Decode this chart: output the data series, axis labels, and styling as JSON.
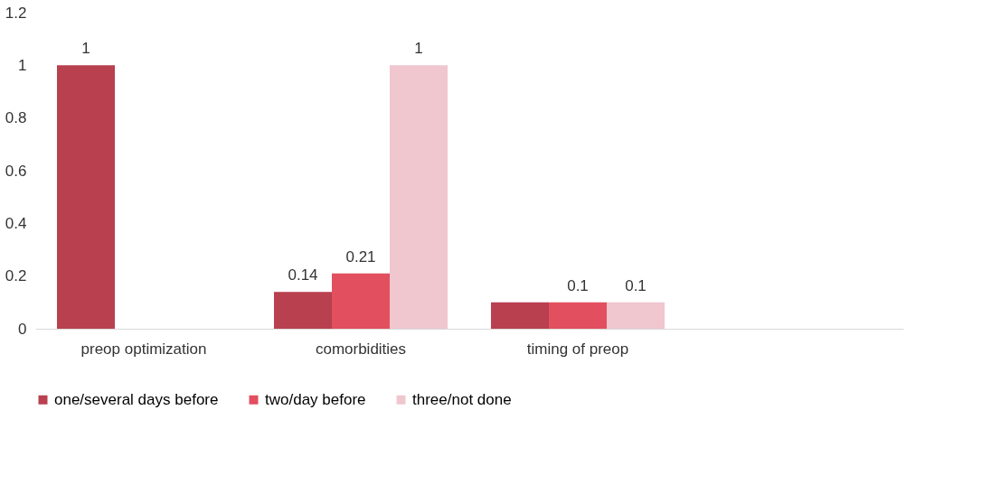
{
  "chart_data": {
    "type": "bar",
    "categories": [
      "preop optimization",
      "comorbidities",
      "timing of preop",
      null
    ],
    "series": [
      {
        "name": "one/several days before",
        "color": "#b8404f",
        "values": [
          1,
          0.14,
          0.1,
          null
        ],
        "value_labels": [
          "1",
          "0.14",
          null,
          null
        ]
      },
      {
        "name": "two/day before",
        "color": "#e24f5e",
        "values": [
          null,
          0.21,
          0.1,
          null
        ],
        "value_labels": [
          null,
          "0.21",
          "0.1",
          null
        ]
      },
      {
        "name": "three/not done",
        "color": "#f0c6cf",
        "values": [
          null,
          1,
          0.1,
          null
        ],
        "value_labels": [
          null,
          "1",
          "0.1",
          null
        ]
      }
    ],
    "ylim": [
      0,
      1.2
    ],
    "yticks": [
      0,
      0.2,
      0.4,
      0.6,
      0.8,
      1,
      1.2
    ],
    "grid": false,
    "legend": "bottom"
  }
}
